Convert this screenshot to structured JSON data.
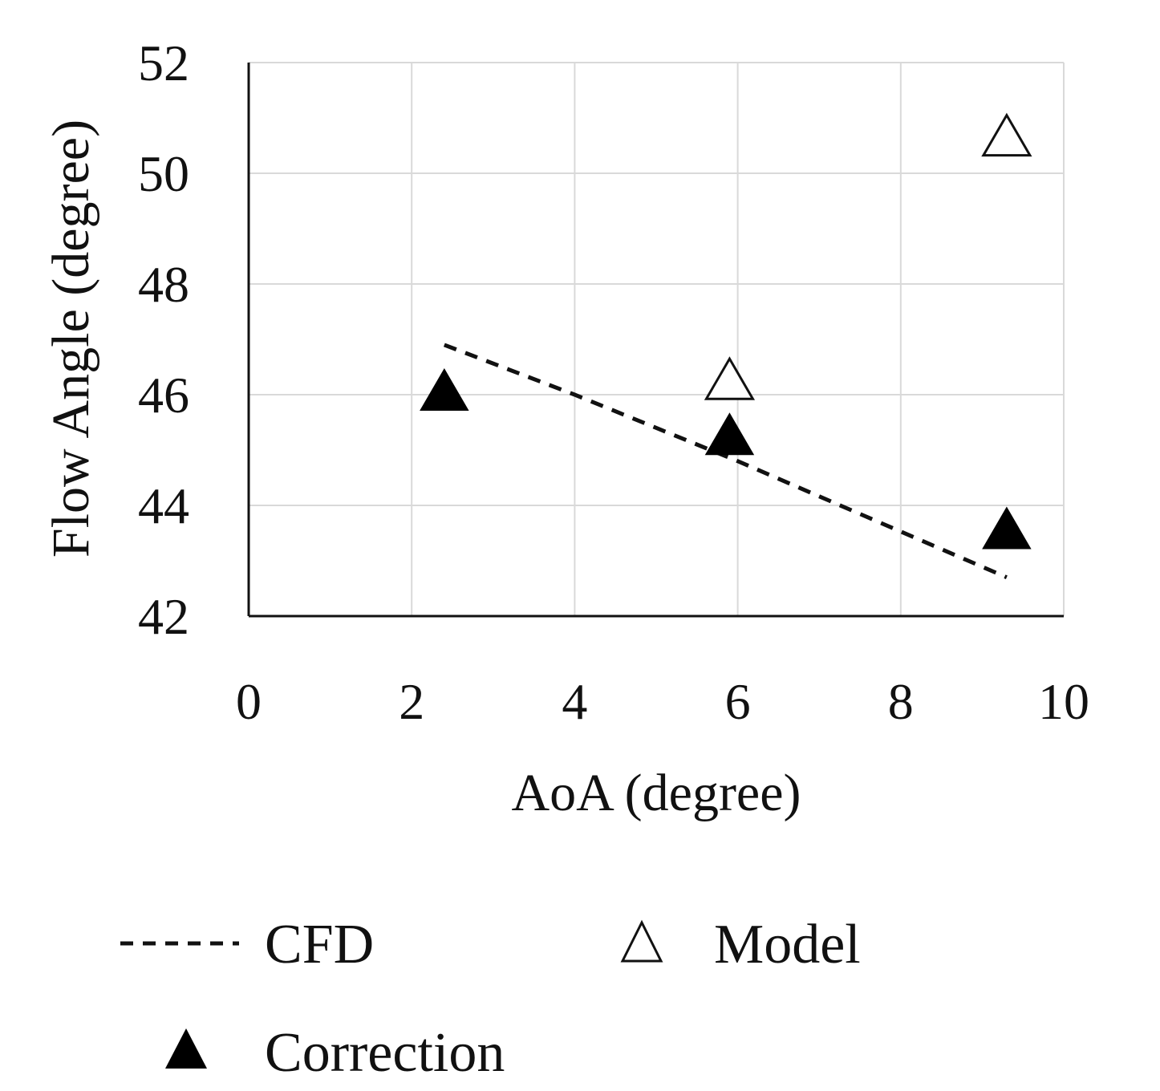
{
  "chart_data": {
    "type": "scatter",
    "title": "",
    "xlabel": "AoA (degree)",
    "ylabel": "Flow Angle (degree)",
    "xlim": [
      0,
      10
    ],
    "ylim": [
      42,
      52
    ],
    "xticks": [
      0,
      2,
      4,
      6,
      8,
      10
    ],
    "yticks": [
      42,
      44,
      46,
      48,
      50,
      52
    ],
    "x_tick_labels": [
      "0",
      "2",
      "4",
      "6",
      "8",
      "10"
    ],
    "y_tick_labels": [
      "42",
      "44",
      "46",
      "48",
      "50",
      "52"
    ],
    "grid": true,
    "legend_position": "bottom",
    "series": [
      {
        "name": "CFD",
        "style": "dashed-line",
        "color": "#111111",
        "points": [
          {
            "x": 2.4,
            "y": 46.9
          },
          {
            "x": 4.0,
            "y": 46.0
          },
          {
            "x": 6.0,
            "y": 44.8
          },
          {
            "x": 9.3,
            "y": 42.7
          }
        ]
      },
      {
        "name": "Model",
        "style": "open-triangle",
        "color": "#111111",
        "points": [
          {
            "x": 5.9,
            "y": 46.2
          },
          {
            "x": 9.3,
            "y": 50.6
          }
        ]
      },
      {
        "name": "Correction",
        "style": "filled-triangle",
        "color": "#000000",
        "points": [
          {
            "x": 2.4,
            "y": 46.0
          },
          {
            "x": 5.9,
            "y": 45.2
          },
          {
            "x": 9.3,
            "y": 43.5
          }
        ]
      }
    ]
  },
  "legend": {
    "cfd_label": "CFD",
    "model_label": "Model",
    "correction_label": "Correction"
  }
}
